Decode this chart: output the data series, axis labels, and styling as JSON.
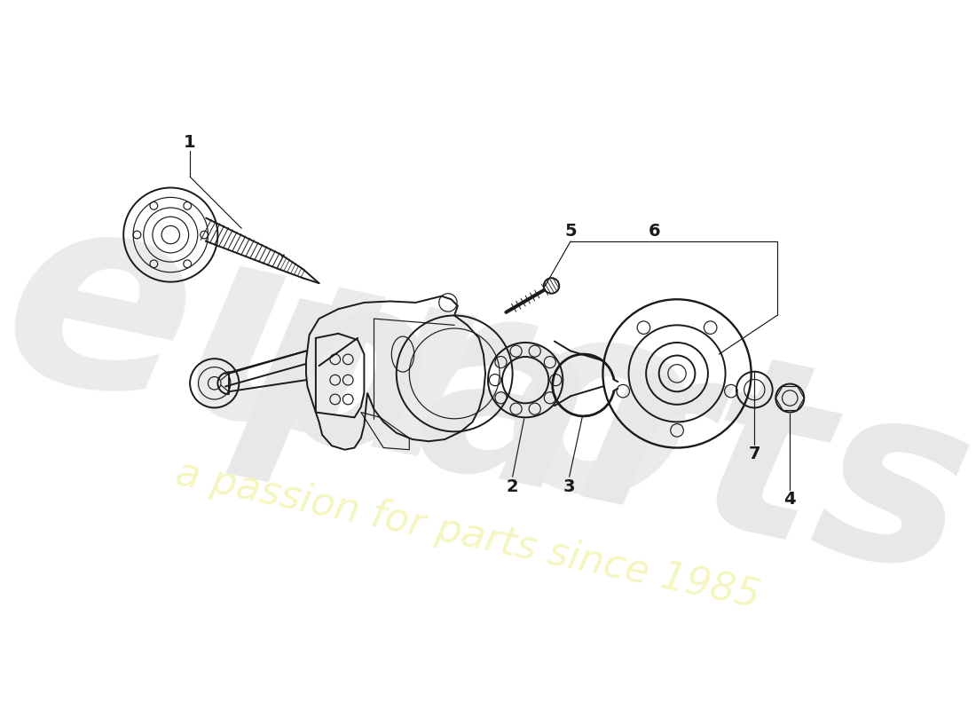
{
  "bg_color": "#ffffff",
  "line_color": "#1a1a1a",
  "lw_main": 1.4,
  "lw_thin": 0.85,
  "lw_thick": 2.0,
  "label_fontsize": 14,
  "watermark_color1": "#e8e8e8",
  "watermark_color2": "#f0f0cc",
  "wm_text1": "euro",
  "wm_text2": "parts",
  "wm_slogan": "a passion for parts since 1985"
}
